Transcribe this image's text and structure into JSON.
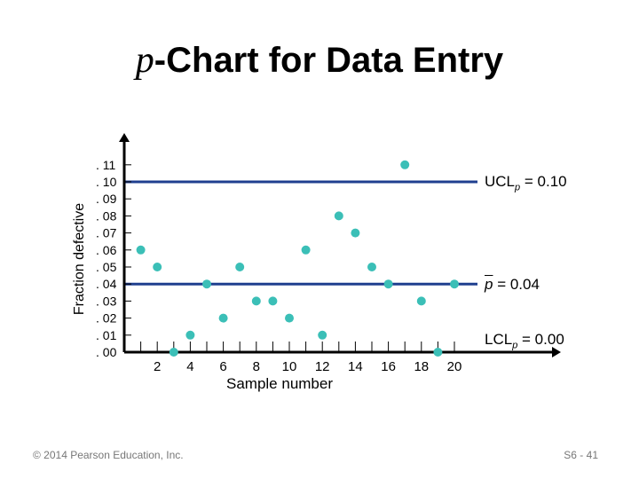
{
  "title": {
    "italic": "p",
    "rest": "-Chart for Data Entry"
  },
  "footer": {
    "copyright": "© 2014 Pearson Education, Inc.",
    "slide": "S6 - 41"
  },
  "chart_data": {
    "type": "scatter",
    "title": "p-Chart for Data Entry",
    "xlabel": "Sample number",
    "ylabel": "Fraction defective",
    "xlim": [
      0,
      22
    ],
    "ylim": [
      0,
      0.11
    ],
    "x_ticks": [
      2,
      4,
      6,
      8,
      10,
      12,
      14,
      16,
      18,
      20
    ],
    "y_tick_labels": [
      ". 00",
      ". 01",
      ". 02",
      ". 03",
      ". 04",
      ". 05",
      ". 06",
      ". 07",
      ". 08",
      ". 09",
      ". 10",
      ". 11"
    ],
    "y_ticks": [
      0,
      0.01,
      0.02,
      0.03,
      0.04,
      0.05,
      0.06,
      0.07,
      0.08,
      0.09,
      0.1,
      0.11
    ],
    "grid": false,
    "marker_color": "#3bbfb7",
    "line_color": "#1f3f8f",
    "points": [
      {
        "x": 1,
        "y": 0.06
      },
      {
        "x": 2,
        "y": 0.05
      },
      {
        "x": 3,
        "y": 0.0
      },
      {
        "x": 4,
        "y": 0.01
      },
      {
        "x": 5,
        "y": 0.04
      },
      {
        "x": 6,
        "y": 0.02
      },
      {
        "x": 7,
        "y": 0.05
      },
      {
        "x": 8,
        "y": 0.03
      },
      {
        "x": 9,
        "y": 0.03
      },
      {
        "x": 10,
        "y": 0.02
      },
      {
        "x": 11,
        "y": 0.06
      },
      {
        "x": 12,
        "y": 0.01
      },
      {
        "x": 13,
        "y": 0.08
      },
      {
        "x": 14,
        "y": 0.07
      },
      {
        "x": 15,
        "y": 0.05
      },
      {
        "x": 16,
        "y": 0.04
      },
      {
        "x": 17,
        "y": 0.11
      },
      {
        "x": 18,
        "y": 0.03
      },
      {
        "x": 19,
        "y": 0.0
      },
      {
        "x": 20,
        "y": 0.04
      }
    ],
    "control_lines": [
      {
        "name": "UCL",
        "value": 0.1,
        "label_main": "UCL",
        "label_sub": "p",
        "label_value": " = 0.10"
      },
      {
        "name": "center",
        "value": 0.04,
        "label_main": "p",
        "label_sub": "",
        "label_value": " =  0.04"
      },
      {
        "name": "LCL",
        "value": 0.0,
        "label_main": "LCL",
        "label_sub": "p",
        "label_value": " = 0.00"
      }
    ]
  }
}
